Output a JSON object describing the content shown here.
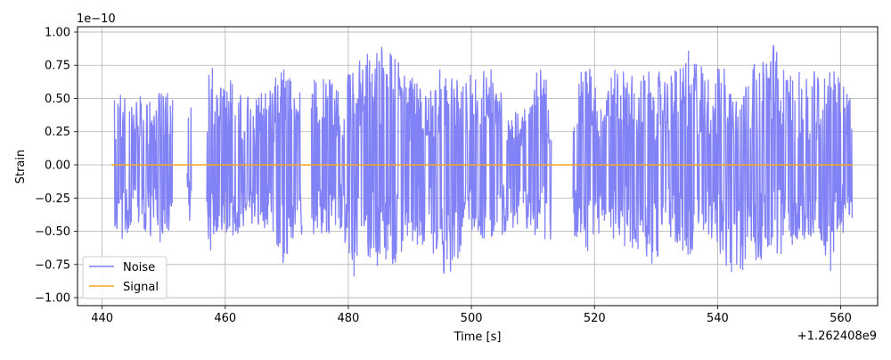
{
  "chart_data": {
    "type": "line",
    "title": "",
    "xlabel": "Time [s]",
    "ylabel": "Strain",
    "x_offset_label": "+1.262408e9",
    "y_scale_label": "1e−10",
    "xlim": [
      436,
      566
    ],
    "ylim": [
      -1.06,
      1.04
    ],
    "x_ticks": [
      440,
      460,
      480,
      500,
      520,
      540,
      560
    ],
    "x_tick_labels": [
      "440",
      "460",
      "480",
      "500",
      "520",
      "540",
      "560"
    ],
    "y_ticks": [
      -1.0,
      -0.75,
      -0.5,
      -0.25,
      0.0,
      0.25,
      0.5,
      0.75,
      1.0
    ],
    "y_tick_labels": [
      "−1.00",
      "−0.75",
      "−0.50",
      "−0.25",
      "0.00",
      "0.25",
      "0.50",
      "0.75",
      "1.00"
    ],
    "grid": true,
    "legend_position": "bottom-left",
    "series": [
      {
        "name": "Noise",
        "color": "#7b7bf7",
        "segments": [
          {
            "x_start": 442.0,
            "x_end": 451.5,
            "envelope": [
              [
                442.0,
                0.62,
                -0.45
              ],
              [
                443.5,
                0.55,
                -0.6
              ],
              [
                445.0,
                0.45,
                -0.4
              ],
              [
                447.0,
                0.58,
                -0.5
              ],
              [
                449.0,
                0.55,
                -0.64
              ],
              [
                451.5,
                0.56,
                -0.48
              ]
            ]
          },
          {
            "x_start": 453.8,
            "x_end": 454.6,
            "envelope": [
              [
                453.8,
                0.4,
                -0.22
              ],
              [
                454.3,
                0.53,
                -0.51
              ],
              [
                454.6,
                0.45,
                -0.4
              ]
            ]
          },
          {
            "x_start": 457.0,
            "x_end": 472.5,
            "envelope": [
              [
                457.0,
                0.55,
                -0.55
              ],
              [
                457.8,
                0.87,
                -0.67
              ],
              [
                459.0,
                0.6,
                -0.5
              ],
              [
                461.5,
                0.65,
                -0.55
              ],
              [
                464.0,
                0.55,
                -0.45
              ],
              [
                467.0,
                0.56,
                -0.5
              ],
              [
                469.5,
                0.77,
                -0.77
              ],
              [
                472.5,
                0.6,
                -0.55
              ]
            ]
          },
          {
            "x_start": 474.0,
            "x_end": 513.0,
            "envelope": [
              [
                474.0,
                0.65,
                -0.6
              ],
              [
                476.0,
                0.7,
                -0.55
              ],
              [
                479.0,
                0.6,
                -0.5
              ],
              [
                481.0,
                0.77,
                -0.88
              ],
              [
                483.5,
                0.85,
                -0.7
              ],
              [
                485.0,
                0.92,
                -0.97
              ],
              [
                487.0,
                0.85,
                -0.8
              ],
              [
                490.0,
                0.7,
                -0.62
              ],
              [
                493.0,
                0.55,
                -0.6
              ],
              [
                496.0,
                0.89,
                -0.88
              ],
              [
                498.5,
                0.6,
                -0.72
              ],
              [
                500.0,
                0.7,
                -0.5
              ],
              [
                503.0,
                0.73,
                -0.6
              ],
              [
                506.0,
                0.55,
                -0.5
              ],
              [
                508.0,
                0.38,
                -0.45
              ],
              [
                511.0,
                0.77,
                -0.56
              ],
              [
                513.0,
                0.6,
                -0.6
              ]
            ]
          },
          {
            "x_start": 516.5,
            "x_end": 562.0,
            "envelope": [
              [
                516.5,
                0.65,
                -0.55
              ],
              [
                519.0,
                0.76,
                -0.72
              ],
              [
                521.0,
                0.55,
                -0.5
              ],
              [
                524.0,
                0.77,
                -0.61
              ],
              [
                527.0,
                0.65,
                -0.67
              ],
              [
                529.5,
                0.76,
                -0.75
              ],
              [
                532.0,
                0.65,
                -0.55
              ],
              [
                535.0,
                0.87,
                -0.72
              ],
              [
                538.0,
                0.75,
                -0.5
              ],
              [
                541.0,
                0.77,
                -0.72
              ],
              [
                542.5,
                0.55,
                -0.95
              ],
              [
                545.0,
                0.75,
                -0.72
              ],
              [
                547.5,
                0.78,
                -0.73
              ],
              [
                549.0,
                0.95,
                -0.8
              ],
              [
                551.0,
                0.7,
                -0.62
              ],
              [
                554.0,
                0.72,
                -0.58
              ],
              [
                556.5,
                0.7,
                -0.53
              ],
              [
                558.5,
                0.72,
                -0.85
              ],
              [
                561.0,
                0.63,
                -0.48
              ],
              [
                562.0,
                0.5,
                -0.4
              ]
            ]
          }
        ]
      },
      {
        "name": "Signal",
        "color": "#f5a623",
        "points": [
          [
            441.5,
            0.0
          ],
          [
            562.0,
            0.0
          ]
        ]
      }
    ]
  }
}
